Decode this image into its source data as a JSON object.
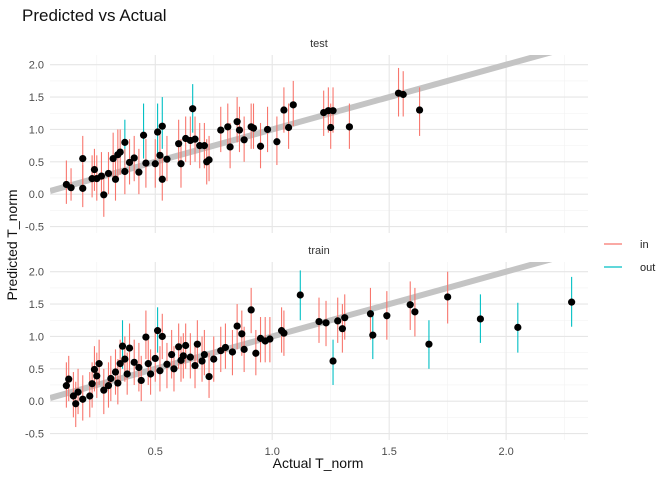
{
  "chart_data": {
    "type": "scatter",
    "title": "Predicted vs Actual",
    "xlabel": "Actual T_norm",
    "ylabel": "Predicted T_norm",
    "xlim": [
      0.05,
      2.35
    ],
    "ylim": [
      -0.6,
      2.15
    ],
    "x_ticks": [
      "0.5",
      "1.0",
      "1.5",
      "2.0"
    ],
    "x_tick_values": [
      0.5,
      1.0,
      1.5,
      2.0
    ],
    "y_ticks": [
      "-0.5",
      "0.0",
      "0.5",
      "1.0",
      "1.5",
      "2.0"
    ],
    "y_tick_values": [
      -0.5,
      0.0,
      0.5,
      1.0,
      1.5,
      2.0
    ],
    "grid": true,
    "reference_line": {
      "slope": 1,
      "intercept": 0,
      "color": "#c4c4c4"
    },
    "point_color": "#000000",
    "legend": {
      "position": "right",
      "entries": [
        {
          "label": "in",
          "color": "#f8766d"
        },
        {
          "label": "out",
          "color": "#00bfc4"
        }
      ]
    },
    "panels": [
      {
        "label": "test",
        "points": [
          {
            "x": 0.12,
            "y": 0.15,
            "lo": -0.15,
            "hi": 0.52,
            "g": "in"
          },
          {
            "x": 0.14,
            "y": 0.1,
            "lo": -0.1,
            "hi": 0.4,
            "g": "in"
          },
          {
            "x": 0.19,
            "y": 0.09,
            "lo": -0.2,
            "hi": 0.45,
            "g": "in"
          },
          {
            "x": 0.19,
            "y": 0.55,
            "lo": 0.15,
            "hi": 0.9,
            "g": "in"
          },
          {
            "x": 0.23,
            "y": 0.24,
            "lo": -0.05,
            "hi": 0.6,
            "g": "in"
          },
          {
            "x": 0.24,
            "y": 0.38,
            "lo": 0.05,
            "hi": 0.7,
            "g": "in"
          },
          {
            "x": 0.25,
            "y": 0.24,
            "lo": -0.1,
            "hi": 0.6,
            "g": "in"
          },
          {
            "x": 0.27,
            "y": 0.28,
            "lo": -0.05,
            "hi": 0.65,
            "g": "in"
          },
          {
            "x": 0.28,
            "y": -0.01,
            "lo": -0.35,
            "hi": 0.32,
            "g": "in"
          },
          {
            "x": 0.3,
            "y": 0.32,
            "lo": 0.0,
            "hi": 0.65,
            "g": "in"
          },
          {
            "x": 0.32,
            "y": 0.55,
            "lo": 0.2,
            "hi": 0.95,
            "g": "in"
          },
          {
            "x": 0.33,
            "y": 0.23,
            "lo": -0.1,
            "hi": 0.6,
            "g": "in"
          },
          {
            "x": 0.34,
            "y": 0.61,
            "lo": 0.25,
            "hi": 1.0,
            "g": "in"
          },
          {
            "x": 0.35,
            "y": 0.65,
            "lo": 0.3,
            "hi": 1.0,
            "g": "in"
          },
          {
            "x": 0.37,
            "y": 0.8,
            "lo": 0.45,
            "hi": 1.15,
            "g": "out"
          },
          {
            "x": 0.37,
            "y": 0.35,
            "lo": 0.0,
            "hi": 0.7,
            "g": "in"
          },
          {
            "x": 0.39,
            "y": 0.49,
            "lo": 0.15,
            "hi": 0.85,
            "g": "in"
          },
          {
            "x": 0.41,
            "y": 0.56,
            "lo": 0.2,
            "hi": 0.9,
            "g": "in"
          },
          {
            "x": 0.43,
            "y": 0.34,
            "lo": 0.0,
            "hi": 0.7,
            "g": "in"
          },
          {
            "x": 0.45,
            "y": 0.91,
            "lo": 0.55,
            "hi": 1.4,
            "g": "out"
          },
          {
            "x": 0.46,
            "y": 0.48,
            "lo": 0.1,
            "hi": 0.85,
            "g": "in"
          },
          {
            "x": 0.5,
            "y": 0.47,
            "lo": 0.1,
            "hi": 0.85,
            "g": "in"
          },
          {
            "x": 0.51,
            "y": 0.96,
            "lo": 0.6,
            "hi": 1.4,
            "g": "out"
          },
          {
            "x": 0.52,
            "y": 0.6,
            "lo": 0.25,
            "hi": 0.95,
            "g": "in"
          },
          {
            "x": 0.53,
            "y": 1.05,
            "lo": 0.7,
            "hi": 1.5,
            "g": "out"
          },
          {
            "x": 0.53,
            "y": 0.23,
            "lo": -0.1,
            "hi": 0.6,
            "g": "in"
          },
          {
            "x": 0.55,
            "y": 0.54,
            "lo": 0.2,
            "hi": 0.9,
            "g": "in"
          },
          {
            "x": 0.6,
            "y": 0.78,
            "lo": 0.45,
            "hi": 1.15,
            "g": "in"
          },
          {
            "x": 0.61,
            "y": 0.47,
            "lo": 0.1,
            "hi": 0.85,
            "g": "in"
          },
          {
            "x": 0.63,
            "y": 0.86,
            "lo": 0.5,
            "hi": 1.2,
            "g": "in"
          },
          {
            "x": 0.65,
            "y": 0.83,
            "lo": 0.45,
            "hi": 1.2,
            "g": "in"
          },
          {
            "x": 0.66,
            "y": 1.32,
            "lo": 0.95,
            "hi": 1.7,
            "g": "out"
          },
          {
            "x": 0.67,
            "y": 0.85,
            "lo": 0.5,
            "hi": 1.2,
            "g": "in"
          },
          {
            "x": 0.69,
            "y": 0.75,
            "lo": 0.4,
            "hi": 1.1,
            "g": "in"
          },
          {
            "x": 0.71,
            "y": 0.75,
            "lo": 0.4,
            "hi": 1.1,
            "g": "in"
          },
          {
            "x": 0.72,
            "y": 0.5,
            "lo": 0.15,
            "hi": 0.85,
            "g": "in"
          },
          {
            "x": 0.73,
            "y": 0.53,
            "lo": 0.2,
            "hi": 0.9,
            "g": "in"
          },
          {
            "x": 0.78,
            "y": 0.99,
            "lo": 0.65,
            "hi": 1.35,
            "g": "in"
          },
          {
            "x": 0.81,
            "y": 1.04,
            "lo": 0.7,
            "hi": 1.4,
            "g": "in"
          },
          {
            "x": 0.82,
            "y": 0.73,
            "lo": 0.4,
            "hi": 1.1,
            "g": "in"
          },
          {
            "x": 0.85,
            "y": 1.12,
            "lo": 0.8,
            "hi": 1.5,
            "g": "in"
          },
          {
            "x": 0.86,
            "y": 0.99,
            "lo": 0.65,
            "hi": 1.35,
            "g": "in"
          },
          {
            "x": 0.88,
            "y": 0.84,
            "lo": 0.5,
            "hi": 1.2,
            "g": "in"
          },
          {
            "x": 0.91,
            "y": 1.04,
            "lo": 0.7,
            "hi": 1.4,
            "g": "in"
          },
          {
            "x": 0.92,
            "y": 1.02,
            "lo": 0.7,
            "hi": 1.4,
            "g": "in"
          },
          {
            "x": 0.95,
            "y": 0.74,
            "lo": 0.4,
            "hi": 1.1,
            "g": "in"
          },
          {
            "x": 0.98,
            "y": 1.0,
            "lo": 0.65,
            "hi": 1.35,
            "g": "in"
          },
          {
            "x": 1.02,
            "y": 0.81,
            "lo": 0.45,
            "hi": 1.2,
            "g": "in"
          },
          {
            "x": 1.05,
            "y": 1.3,
            "lo": 0.95,
            "hi": 1.65,
            "g": "in"
          },
          {
            "x": 1.07,
            "y": 1.03,
            "lo": 0.7,
            "hi": 1.4,
            "g": "in"
          },
          {
            "x": 1.09,
            "y": 1.38,
            "lo": 1.05,
            "hi": 1.75,
            "g": "in"
          },
          {
            "x": 1.22,
            "y": 1.26,
            "lo": 0.9,
            "hi": 1.6,
            "g": "in"
          },
          {
            "x": 1.24,
            "y": 1.29,
            "lo": 0.95,
            "hi": 1.65,
            "g": "in"
          },
          {
            "x": 1.25,
            "y": 1.03,
            "lo": 0.7,
            "hi": 1.4,
            "g": "in"
          },
          {
            "x": 1.26,
            "y": 1.29,
            "lo": 0.95,
            "hi": 1.65,
            "g": "in"
          },
          {
            "x": 1.33,
            "y": 1.04,
            "lo": 0.7,
            "hi": 1.4,
            "g": "in"
          },
          {
            "x": 1.54,
            "y": 1.56,
            "lo": 1.2,
            "hi": 1.95,
            "g": "in"
          },
          {
            "x": 1.56,
            "y": 1.54,
            "lo": 1.2,
            "hi": 1.9,
            "g": "in"
          },
          {
            "x": 1.63,
            "y": 1.3,
            "lo": 0.9,
            "hi": 1.65,
            "g": "in"
          }
        ]
      },
      {
        "label": "train",
        "points": [
          {
            "x": 0.12,
            "y": 0.24,
            "lo": -0.1,
            "hi": 0.6,
            "g": "in"
          },
          {
            "x": 0.13,
            "y": 0.34,
            "lo": 0.0,
            "hi": 0.7,
            "g": "in"
          },
          {
            "x": 0.15,
            "y": 0.08,
            "lo": -0.25,
            "hi": 0.45,
            "g": "in"
          },
          {
            "x": 0.16,
            "y": -0.04,
            "lo": -0.4,
            "hi": 0.3,
            "g": "in"
          },
          {
            "x": 0.17,
            "y": 0.14,
            "lo": -0.2,
            "hi": 0.5,
            "g": "in"
          },
          {
            "x": 0.19,
            "y": 0.03,
            "lo": -0.3,
            "hi": 0.4,
            "g": "in"
          },
          {
            "x": 0.22,
            "y": 0.08,
            "lo": -0.25,
            "hi": 0.45,
            "g": "in"
          },
          {
            "x": 0.23,
            "y": 0.27,
            "lo": -0.1,
            "hi": 0.6,
            "g": "in"
          },
          {
            "x": 0.24,
            "y": 0.49,
            "lo": 0.15,
            "hi": 0.85,
            "g": "in"
          },
          {
            "x": 0.25,
            "y": 0.39,
            "lo": 0.05,
            "hi": 0.75,
            "g": "in"
          },
          {
            "x": 0.26,
            "y": 0.58,
            "lo": 0.25,
            "hi": 0.95,
            "g": "in"
          },
          {
            "x": 0.28,
            "y": 0.17,
            "lo": -0.2,
            "hi": 0.5,
            "g": "in"
          },
          {
            "x": 0.3,
            "y": 0.24,
            "lo": -0.1,
            "hi": 0.6,
            "g": "in"
          },
          {
            "x": 0.31,
            "y": 0.35,
            "lo": 0.0,
            "hi": 0.7,
            "g": "in"
          },
          {
            "x": 0.33,
            "y": 0.45,
            "lo": 0.1,
            "hi": 0.8,
            "g": "in"
          },
          {
            "x": 0.34,
            "y": 0.28,
            "lo": -0.05,
            "hi": 0.65,
            "g": "in"
          },
          {
            "x": 0.35,
            "y": 0.58,
            "lo": 0.25,
            "hi": 0.95,
            "g": "in"
          },
          {
            "x": 0.36,
            "y": 0.85,
            "lo": 0.5,
            "hi": 1.25,
            "g": "out"
          },
          {
            "x": 0.37,
            "y": 0.65,
            "lo": 0.3,
            "hi": 1.0,
            "g": "in"
          },
          {
            "x": 0.38,
            "y": 0.42,
            "lo": 0.1,
            "hi": 0.75,
            "g": "in"
          },
          {
            "x": 0.39,
            "y": 0.82,
            "lo": 0.45,
            "hi": 1.2,
            "g": "in"
          },
          {
            "x": 0.41,
            "y": 0.6,
            "lo": 0.25,
            "hi": 0.95,
            "g": "in"
          },
          {
            "x": 0.43,
            "y": 0.52,
            "lo": 0.15,
            "hi": 0.9,
            "g": "in"
          },
          {
            "x": 0.44,
            "y": 0.32,
            "lo": 0.0,
            "hi": 0.7,
            "g": "in"
          },
          {
            "x": 0.46,
            "y": 0.99,
            "lo": 0.65,
            "hi": 1.4,
            "g": "in"
          },
          {
            "x": 0.47,
            "y": 0.58,
            "lo": 0.25,
            "hi": 0.95,
            "g": "in"
          },
          {
            "x": 0.48,
            "y": 0.42,
            "lo": 0.1,
            "hi": 0.8,
            "g": "in"
          },
          {
            "x": 0.5,
            "y": 0.66,
            "lo": 0.3,
            "hi": 1.05,
            "g": "in"
          },
          {
            "x": 0.51,
            "y": 1.09,
            "lo": 0.75,
            "hi": 1.45,
            "g": "out"
          },
          {
            "x": 0.52,
            "y": 0.47,
            "lo": 0.15,
            "hi": 0.85,
            "g": "in"
          },
          {
            "x": 0.53,
            "y": 1.0,
            "lo": 0.65,
            "hi": 1.35,
            "g": "in"
          },
          {
            "x": 0.55,
            "y": 0.57,
            "lo": 0.2,
            "hi": 0.9,
            "g": "in"
          },
          {
            "x": 0.57,
            "y": 0.72,
            "lo": 0.35,
            "hi": 1.1,
            "g": "in"
          },
          {
            "x": 0.58,
            "y": 0.5,
            "lo": 0.15,
            "hi": 0.85,
            "g": "in"
          },
          {
            "x": 0.6,
            "y": 0.84,
            "lo": 0.5,
            "hi": 1.2,
            "g": "in"
          },
          {
            "x": 0.61,
            "y": 0.63,
            "lo": 0.3,
            "hi": 1.0,
            "g": "in"
          },
          {
            "x": 0.62,
            "y": 0.7,
            "lo": 0.35,
            "hi": 1.05,
            "g": "in"
          },
          {
            "x": 0.63,
            "y": 0.86,
            "lo": 0.5,
            "hi": 1.2,
            "g": "in"
          },
          {
            "x": 0.65,
            "y": 0.68,
            "lo": 0.35,
            "hi": 1.05,
            "g": "in"
          },
          {
            "x": 0.67,
            "y": 0.55,
            "lo": 0.2,
            "hi": 0.9,
            "g": "in"
          },
          {
            "x": 0.68,
            "y": 0.88,
            "lo": 0.5,
            "hi": 1.25,
            "g": "in"
          },
          {
            "x": 0.7,
            "y": 0.62,
            "lo": 0.3,
            "hi": 1.0,
            "g": "in"
          },
          {
            "x": 0.71,
            "y": 0.72,
            "lo": 0.4,
            "hi": 1.1,
            "g": "in"
          },
          {
            "x": 0.73,
            "y": 0.38,
            "lo": 0.05,
            "hi": 0.75,
            "g": "in"
          },
          {
            "x": 0.75,
            "y": 0.65,
            "lo": 0.3,
            "hi": 1.0,
            "g": "in"
          },
          {
            "x": 0.78,
            "y": 0.78,
            "lo": 0.45,
            "hi": 1.15,
            "g": "in"
          },
          {
            "x": 0.8,
            "y": 0.83,
            "lo": 0.5,
            "hi": 1.2,
            "g": "in"
          },
          {
            "x": 0.83,
            "y": 0.76,
            "lo": 0.4,
            "hi": 1.1,
            "g": "in"
          },
          {
            "x": 0.85,
            "y": 1.16,
            "lo": 0.8,
            "hi": 1.5,
            "g": "in"
          },
          {
            "x": 0.87,
            "y": 1.04,
            "lo": 0.7,
            "hi": 1.4,
            "g": "in"
          },
          {
            "x": 0.88,
            "y": 0.8,
            "lo": 0.45,
            "hi": 1.15,
            "g": "in"
          },
          {
            "x": 0.91,
            "y": 1.41,
            "lo": 1.05,
            "hi": 1.75,
            "g": "in"
          },
          {
            "x": 0.93,
            "y": 0.74,
            "lo": 0.4,
            "hi": 1.1,
            "g": "in"
          },
          {
            "x": 0.95,
            "y": 0.97,
            "lo": 0.6,
            "hi": 1.3,
            "g": "in"
          },
          {
            "x": 0.97,
            "y": 0.93,
            "lo": 0.6,
            "hi": 1.3,
            "g": "in"
          },
          {
            "x": 0.99,
            "y": 0.96,
            "lo": 0.6,
            "hi": 1.3,
            "g": "in"
          },
          {
            "x": 1.04,
            "y": 1.09,
            "lo": 0.75,
            "hi": 1.45,
            "g": "in"
          },
          {
            "x": 1.05,
            "y": 1.05,
            "lo": 0.7,
            "hi": 1.4,
            "g": "in"
          },
          {
            "x": 1.12,
            "y": 1.64,
            "lo": 1.25,
            "hi": 2.02,
            "g": "out"
          },
          {
            "x": 1.2,
            "y": 1.23,
            "lo": 0.9,
            "hi": 1.6,
            "g": "in"
          },
          {
            "x": 1.23,
            "y": 1.21,
            "lo": 0.85,
            "hi": 1.55,
            "g": "in"
          },
          {
            "x": 1.26,
            "y": 0.62,
            "lo": 0.25,
            "hi": 0.95,
            "g": "out"
          },
          {
            "x": 1.28,
            "y": 1.24,
            "lo": 0.9,
            "hi": 1.6,
            "g": "in"
          },
          {
            "x": 1.3,
            "y": 1.12,
            "lo": 0.75,
            "hi": 1.5,
            "g": "in"
          },
          {
            "x": 1.31,
            "y": 1.29,
            "lo": 0.95,
            "hi": 1.65,
            "g": "in"
          },
          {
            "x": 1.42,
            "y": 1.35,
            "lo": 0.95,
            "hi": 1.75,
            "g": "in"
          },
          {
            "x": 1.43,
            "y": 1.02,
            "lo": 0.65,
            "hi": 1.4,
            "g": "out"
          },
          {
            "x": 1.49,
            "y": 1.32,
            "lo": 0.95,
            "hi": 1.7,
            "g": "in"
          },
          {
            "x": 1.59,
            "y": 1.49,
            "lo": 1.1,
            "hi": 1.85,
            "g": "in"
          },
          {
            "x": 1.61,
            "y": 1.38,
            "lo": 1.0,
            "hi": 1.75,
            "g": "in"
          },
          {
            "x": 1.67,
            "y": 0.88,
            "lo": 0.5,
            "hi": 1.25,
            "g": "out"
          },
          {
            "x": 1.75,
            "y": 1.61,
            "lo": 1.2,
            "hi": 2.0,
            "g": "in"
          },
          {
            "x": 1.89,
            "y": 1.27,
            "lo": 0.9,
            "hi": 1.65,
            "g": "out"
          },
          {
            "x": 2.05,
            "y": 1.14,
            "lo": 0.75,
            "hi": 1.52,
            "g": "out"
          },
          {
            "x": 2.28,
            "y": 1.53,
            "lo": 1.15,
            "hi": 1.92,
            "g": "out"
          }
        ]
      }
    ]
  }
}
